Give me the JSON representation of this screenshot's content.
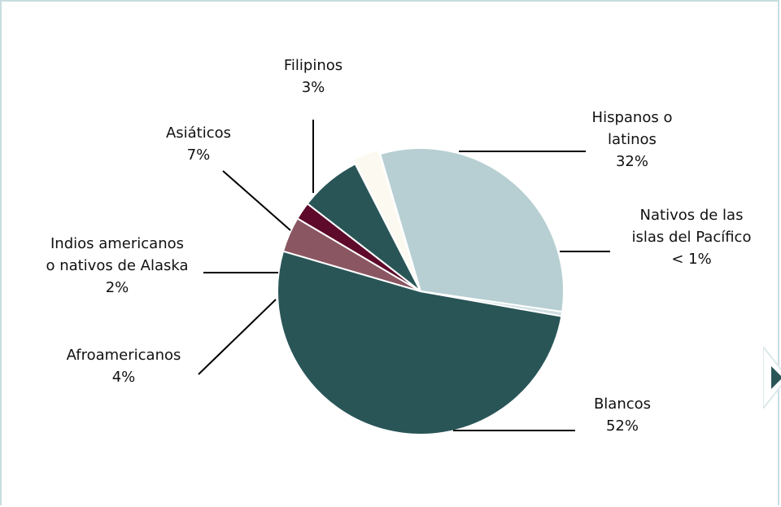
{
  "chart_data": {
    "type": "pie",
    "slices": [
      {
        "label_lines": [
          "Blancos",
          "52%"
        ],
        "value": 52,
        "color": "#295557"
      },
      {
        "label_lines": [
          "Afroamericanos",
          "4%"
        ],
        "value": 4,
        "color": "#8a5662"
      },
      {
        "label_lines": [
          "Indios americanos",
          "o nativos de Alaska",
          "2%"
        ],
        "value": 2,
        "color": "#5e0a2a"
      },
      {
        "label_lines": [
          "Asiáticos",
          "7%"
        ],
        "value": 7,
        "color": "#295557"
      },
      {
        "label_lines": [
          "Filipinos",
          "3%"
        ],
        "value": 3,
        "color": "#fcfaf0"
      },
      {
        "label_lines": [
          "Hispanos o",
          "latinos",
          "32%"
        ],
        "value": 32,
        "color": "#b7cfd3"
      },
      {
        "label_lines": [
          "Nativos de las",
          "islas del Pacífico",
          "< 1%"
        ],
        "value": 0.5,
        "color": "#cfdfe2"
      }
    ]
  },
  "next_button": {
    "icon": "play-right-icon",
    "color": "#295557"
  }
}
